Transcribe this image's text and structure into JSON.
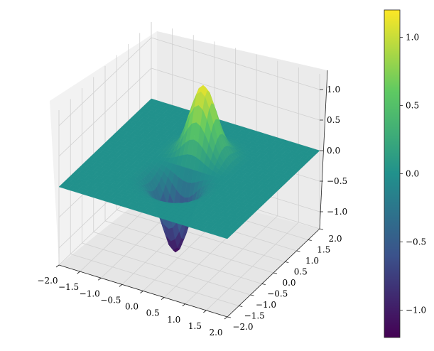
{
  "chart_data": [
    {
      "type": "surface3d",
      "title": "",
      "xlabel": "",
      "ylabel": "",
      "zlabel": "",
      "x_ticks": [
        "−2.0",
        "−1.5",
        "−1.0",
        "−0.5",
        "0.0",
        "0.5",
        "1.0",
        "1.5",
        "2.0"
      ],
      "y_ticks": [
        "−2.0",
        "−1.5",
        "−1.0",
        "−0.5",
        "0.0",
        "0.5",
        "1.0",
        "1.5",
        "2.0"
      ],
      "z_ticks": [
        "−1.0",
        "−0.5",
        "0.0",
        "0.5",
        "1.0"
      ],
      "xlim": [
        -2,
        2
      ],
      "ylim": [
        -2,
        2
      ],
      "zlim": [
        -1.2,
        1.2
      ],
      "colormap": "viridis",
      "peak": {
        "x": 0.0,
        "y": 0.6,
        "z": 1.15
      },
      "trough": {
        "x": 0.0,
        "y": -0.6,
        "z": -1.15
      },
      "base_level": 0.0,
      "grid": true
    },
    {
      "type": "colorbar",
      "colormap": "viridis",
      "range": [
        -1.2,
        1.2
      ],
      "ticks": [
        "−1.0",
        "−0.5",
        "0.0",
        "0.5",
        "1.0"
      ],
      "tick_values": [
        -1.0,
        -0.5,
        0.0,
        0.5,
        1.0
      ]
    }
  ],
  "colors": {
    "viridis_stops": [
      "#440154",
      "#3b528b",
      "#21918c",
      "#5ec962",
      "#fde725"
    ],
    "pane_left": "#f2f2f2",
    "pane_right": "#ebebeb",
    "pane_floor": "#e6e6e6"
  }
}
